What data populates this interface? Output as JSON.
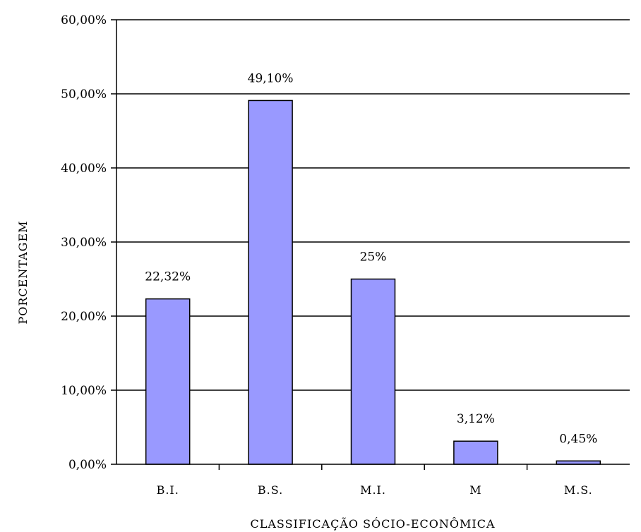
{
  "chart_data": {
    "type": "bar",
    "categories": [
      "B.I.",
      "B.S.",
      "M.I.",
      "M",
      "M.S."
    ],
    "values": [
      22.32,
      49.1,
      25,
      3.12,
      0.45
    ],
    "data_labels": [
      "22,32%",
      "49,10%",
      "25%",
      "3,12%",
      "0,45%"
    ],
    "title": "",
    "xlabel": "CLASSIFICAÇÃO SÓCIO-ECONÔMICA",
    "ylabel": "PORCENTAGEM",
    "ylim": [
      0,
      60
    ],
    "yticks": [
      0,
      10,
      20,
      30,
      40,
      50,
      60
    ],
    "ytick_labels": [
      "0,00%",
      "10,00%",
      "20,00%",
      "30,00%",
      "40,00%",
      "50,00%",
      "60,00%"
    ],
    "grid": true,
    "legend": "none",
    "bar_color": "#9999ff",
    "bar_edge_color": "#000000"
  }
}
